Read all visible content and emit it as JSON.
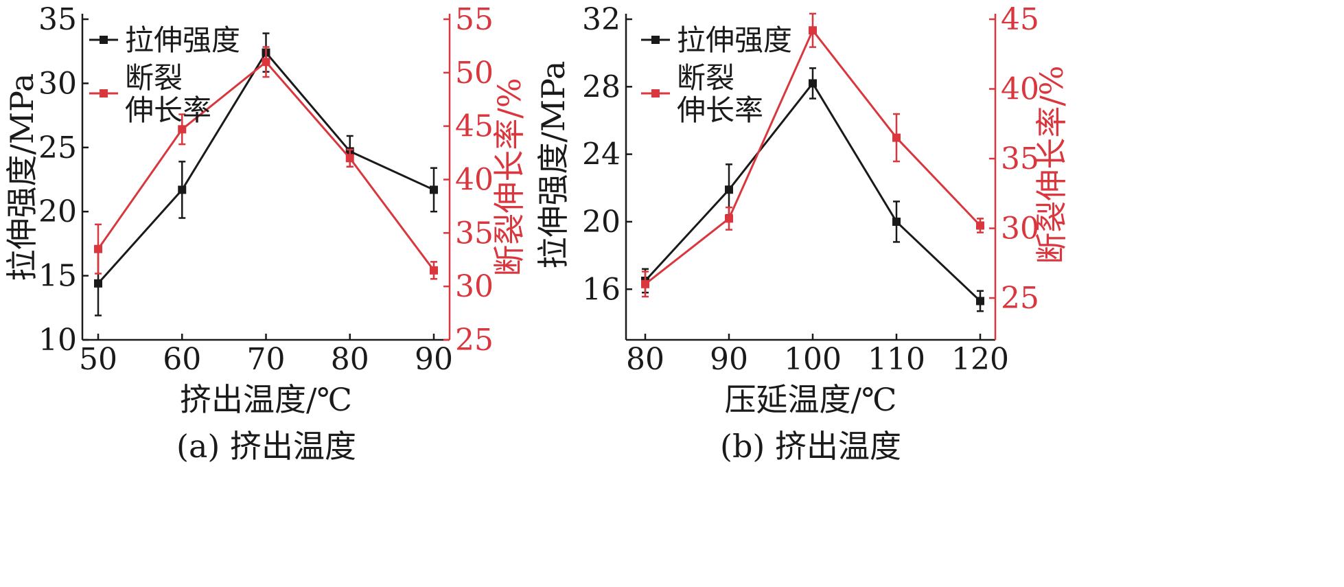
{
  "colors": {
    "strength": "#1a1a1a",
    "elongation": "#d9363e",
    "axis": "#1a1a1a"
  },
  "chart_data": [
    {
      "type": "line",
      "caption": "(a) 挤出温度",
      "xlabel": "挤出温度/℃",
      "ylabel_left": "拉伸强度/MPa",
      "ylabel_right": "断裂伸长率/%",
      "x": [
        50,
        60,
        70,
        80,
        90
      ],
      "xlim": [
        50,
        90
      ],
      "xticks": [
        50,
        60,
        70,
        80,
        90
      ],
      "ylim_left": [
        10,
        35
      ],
      "yticks_left": [
        10,
        15,
        20,
        25,
        30,
        35
      ],
      "ylim_right": [
        25,
        55
      ],
      "yticks_right": [
        25,
        30,
        35,
        40,
        45,
        50,
        55
      ],
      "legend_position": "top-left",
      "grid": false,
      "series": [
        {
          "name": "拉伸强度",
          "axis": "left",
          "values": [
            14.4,
            21.7,
            32.4,
            24.7,
            21.7
          ],
          "errors": [
            2.5,
            2.2,
            1.5,
            1.2,
            1.7
          ]
        },
        {
          "name": "断裂伸长率",
          "axis": "right",
          "legend_lines": [
            "断裂",
            "伸长率"
          ],
          "values": [
            33.5,
            44.7,
            51.0,
            42.0,
            31.5
          ],
          "errors": [
            2.3,
            1.4,
            1.4,
            0.8,
            0.8
          ]
        }
      ]
    },
    {
      "type": "line",
      "caption": "(b) 挤出温度",
      "xlabel": "压延温度/℃",
      "ylabel_left": "拉伸强度/MPa",
      "ylabel_right": "断裂伸长率/%",
      "x": [
        80,
        90,
        100,
        110,
        120
      ],
      "xlim": [
        80,
        120
      ],
      "xticks": [
        80,
        90,
        100,
        110,
        120
      ],
      "ylim_left": [
        13,
        32
      ],
      "yticks_left": [
        16,
        20,
        24,
        28,
        32
      ],
      "ylim_right": [
        22,
        45
      ],
      "yticks_right": [
        25,
        30,
        35,
        40,
        45
      ],
      "legend_position": "top-left",
      "grid": false,
      "series": [
        {
          "name": "拉伸强度",
          "axis": "left",
          "values": [
            16.5,
            21.9,
            28.2,
            20.0,
            15.3
          ],
          "errors": [
            0.7,
            1.5,
            0.9,
            1.2,
            0.6
          ]
        },
        {
          "name": "断裂伸长率",
          "axis": "right",
          "legend_lines": [
            "断裂",
            "伸长率"
          ],
          "values": [
            26.0,
            30.7,
            44.2,
            36.5,
            30.2
          ],
          "errors": [
            0.9,
            0.8,
            1.2,
            1.7,
            0.5
          ]
        }
      ]
    }
  ]
}
